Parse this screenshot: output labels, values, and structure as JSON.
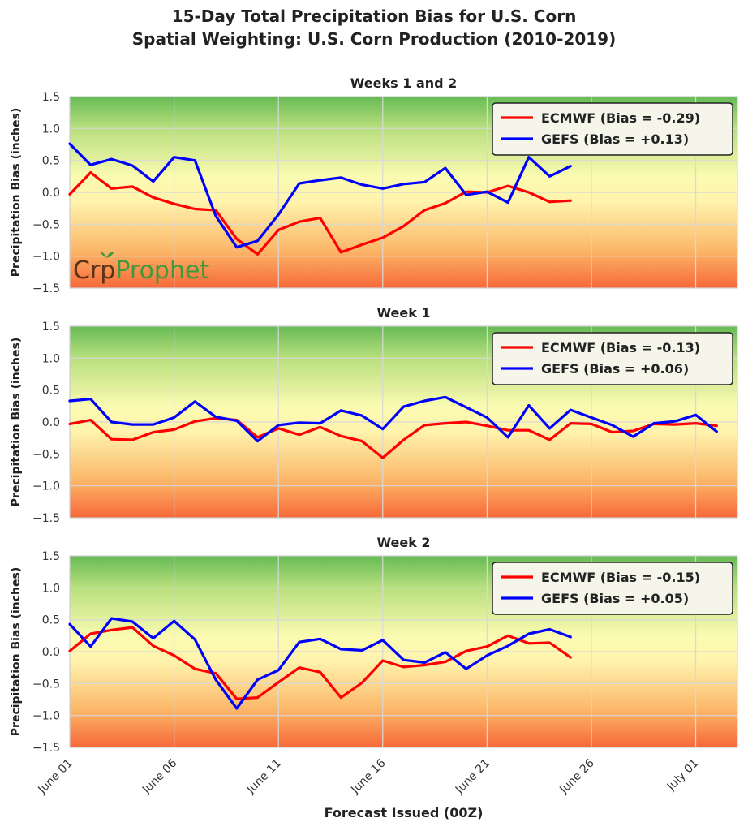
{
  "title_line1": "15-Day Total Precipitation Bias for U.S. Corn",
  "title_line2": "Spatial Weighting: U.S. Corn Production (2010-2019)",
  "logo": {
    "part1": "Cr",
    "part2": "p",
    "part3": "Prophet"
  },
  "colors": {
    "ecmwf": "#ff0000",
    "gefs": "#0000ff",
    "grid": "#d8d8d8",
    "top": "#6dbf5a",
    "mid": "#fefcaa",
    "bottom": "#f7693a",
    "logo_dark": "#5a3414",
    "logo_green": "#3e9a3a"
  },
  "chart_data": [
    {
      "type": "line",
      "title": "Weeks 1 and 2",
      "ylabel": "Precipitation Bias (inches)",
      "xlabel": "",
      "ylim": [
        -1.5,
        1.5
      ],
      "yticks": [
        1.5,
        1.0,
        0.5,
        0.0,
        -0.5,
        -1.0,
        -1.5
      ],
      "ytick_labels": [
        "1.5",
        "1.0",
        "0.5",
        "0.0",
        "−0.5",
        "−1.0",
        "−1.5"
      ],
      "xlim": [
        1,
        33
      ],
      "grid": true,
      "legend": "top-right",
      "series": [
        {
          "name": "ECMWF (Bias = -0.29)",
          "color": "#ff0000",
          "x": [
            1,
            2,
            3,
            4,
            5,
            6,
            7,
            8,
            9,
            10,
            11,
            12,
            13,
            14,
            15,
            16,
            17,
            18,
            19,
            20,
            21,
            22,
            23,
            24,
            25
          ],
          "values": [
            -0.03,
            0.31,
            0.06,
            0.09,
            -0.08,
            -0.18,
            -0.26,
            -0.28,
            -0.73,
            -0.97,
            -0.59,
            -0.46,
            -0.4,
            -0.94,
            -0.82,
            -0.71,
            -0.53,
            -0.28,
            -0.17,
            0.01,
            0.0,
            0.1,
            0.0,
            -0.15,
            -0.13
          ]
        },
        {
          "name": "GEFS (Bias = +0.13)",
          "color": "#0000ff",
          "x": [
            1,
            2,
            3,
            4,
            5,
            6,
            7,
            8,
            9,
            10,
            11,
            12,
            13,
            14,
            15,
            16,
            17,
            18,
            19,
            20,
            21,
            22,
            23,
            24,
            25
          ],
          "values": [
            0.76,
            0.43,
            0.52,
            0.42,
            0.17,
            0.55,
            0.5,
            -0.37,
            -0.86,
            -0.76,
            -0.35,
            0.14,
            0.19,
            0.23,
            0.12,
            0.06,
            0.13,
            0.16,
            0.38,
            -0.04,
            0.01,
            -0.16,
            0.55,
            0.25,
            0.41
          ]
        }
      ]
    },
    {
      "type": "line",
      "title": "Week 1",
      "ylabel": "Precipitation Bias (inches)",
      "xlabel": "",
      "ylim": [
        -1.5,
        1.5
      ],
      "yticks": [
        1.5,
        1.0,
        0.5,
        0.0,
        -0.5,
        -1.0,
        -1.5
      ],
      "ytick_labels": [
        "1.5",
        "1.0",
        "0.5",
        "0.0",
        "−0.5",
        "−1.0",
        "−1.5"
      ],
      "xlim": [
        1,
        33
      ],
      "grid": true,
      "legend": "top-right",
      "series": [
        {
          "name": "ECMWF (Bias = -0.13)",
          "color": "#ff0000",
          "x": [
            1,
            2,
            3,
            4,
            5,
            6,
            7,
            8,
            9,
            10,
            11,
            12,
            13,
            14,
            15,
            16,
            17,
            18,
            19,
            20,
            21,
            22,
            23,
            24,
            25,
            26,
            27,
            28,
            29,
            30,
            31,
            32
          ],
          "values": [
            -0.03,
            0.03,
            -0.27,
            -0.28,
            -0.16,
            -0.12,
            0.01,
            0.06,
            0.03,
            -0.24,
            -0.1,
            -0.2,
            -0.08,
            -0.22,
            -0.3,
            -0.56,
            -0.28,
            -0.05,
            -0.02,
            0.0,
            -0.06,
            -0.13,
            -0.13,
            -0.28,
            -0.02,
            -0.03,
            -0.16,
            -0.14,
            -0.03,
            -0.04,
            -0.02,
            -0.06
          ]
        },
        {
          "name": "GEFS (Bias = +0.06)",
          "color": "#0000ff",
          "x": [
            1,
            2,
            3,
            4,
            5,
            6,
            7,
            8,
            9,
            10,
            11,
            12,
            13,
            14,
            15,
            16,
            17,
            18,
            19,
            20,
            21,
            22,
            23,
            24,
            25,
            26,
            27,
            28,
            29,
            30,
            31,
            32
          ],
          "values": [
            0.33,
            0.36,
            0.0,
            -0.04,
            -0.04,
            0.07,
            0.32,
            0.08,
            0.02,
            -0.3,
            -0.05,
            -0.01,
            -0.02,
            0.18,
            0.1,
            -0.11,
            0.24,
            0.33,
            0.39,
            0.23,
            0.07,
            -0.24,
            0.26,
            -0.1,
            0.19,
            0.07,
            -0.05,
            -0.23,
            -0.02,
            0.01,
            0.11,
            -0.15
          ]
        }
      ]
    },
    {
      "type": "line",
      "title": "Week 2",
      "ylabel": "Precipitation Bias (inches)",
      "xlabel": "Forecast Issued (00Z)",
      "ylim": [
        -1.5,
        1.5
      ],
      "yticks": [
        1.5,
        1.0,
        0.5,
        0.0,
        -0.5,
        -1.0,
        -1.5
      ],
      "ytick_labels": [
        "1.5",
        "1.0",
        "0.5",
        "0.0",
        "−0.5",
        "−1.0",
        "−1.5"
      ],
      "xlim": [
        1,
        33
      ],
      "xticks": [
        1,
        6,
        11,
        16,
        21,
        26,
        31
      ],
      "xtick_labels": [
        "June 01",
        "June 06",
        "June 11",
        "June 16",
        "June 21",
        "June 26",
        "July 01"
      ],
      "grid": true,
      "legend": "top-right",
      "series": [
        {
          "name": "ECMWF (Bias = -0.15)",
          "color": "#ff0000",
          "x": [
            1,
            2,
            3,
            4,
            5,
            6,
            7,
            8,
            9,
            10,
            11,
            12,
            13,
            14,
            15,
            16,
            17,
            18,
            19,
            20,
            21,
            22,
            23,
            24,
            25
          ],
          "values": [
            0.01,
            0.28,
            0.34,
            0.38,
            0.09,
            -0.06,
            -0.27,
            -0.34,
            -0.74,
            -0.72,
            -0.48,
            -0.25,
            -0.32,
            -0.72,
            -0.49,
            -0.14,
            -0.24,
            -0.21,
            -0.16,
            0.01,
            0.08,
            0.25,
            0.13,
            0.14,
            -0.09
          ]
        },
        {
          "name": "GEFS (Bias = +0.05)",
          "color": "#0000ff",
          "x": [
            1,
            2,
            3,
            4,
            5,
            6,
            7,
            8,
            9,
            10,
            11,
            12,
            13,
            14,
            15,
            16,
            17,
            18,
            19,
            20,
            21,
            22,
            23,
            24,
            25
          ],
          "values": [
            0.43,
            0.08,
            0.52,
            0.47,
            0.21,
            0.48,
            0.19,
            -0.44,
            -0.89,
            -0.44,
            -0.29,
            0.15,
            0.2,
            0.04,
            0.02,
            0.18,
            -0.13,
            -0.17,
            -0.01,
            -0.27,
            -0.06,
            0.09,
            0.28,
            0.35,
            0.23
          ]
        }
      ]
    }
  ]
}
